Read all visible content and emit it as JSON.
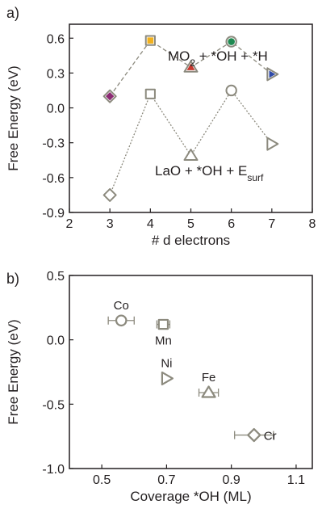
{
  "chart_data": [
    {
      "panel": "a)",
      "type": "scatter",
      "xlabel": "# d electrons",
      "ylabel": "Free Energy (eV)",
      "xlim": [
        2,
        8
      ],
      "ylim": [
        -0.9,
        0.72
      ],
      "x_ticks": [
        "2",
        "3",
        "4",
        "5",
        "6",
        "7",
        "8"
      ],
      "y_ticks": [
        "-0.9",
        "-0.6",
        "-0.3",
        "0.0",
        "0.3",
        "0.6"
      ],
      "series": [
        {
          "name": "MO2 + *OH + *H",
          "label_parts": [
            "MO",
            "2",
            " + *OH + *H"
          ],
          "line": "dashed",
          "points": [
            {
              "x": 3,
              "y": 0.1,
              "marker": "diamond",
              "fill": "#8b2a73"
            },
            {
              "x": 4,
              "y": 0.58,
              "marker": "square",
              "fill": "#f2b11e"
            },
            {
              "x": 5,
              "y": 0.35,
              "marker": "triangle-up",
              "fill": "#c8392f"
            },
            {
              "x": 6,
              "y": 0.57,
              "marker": "circle",
              "fill": "#1f8a52"
            },
            {
              "x": 7,
              "y": 0.29,
              "marker": "triangle-right",
              "fill": "#2f4aa8"
            }
          ]
        },
        {
          "name": "LaO + *OH + Esurf",
          "label_parts": [
            "LaO + *OH + E",
            "surf"
          ],
          "line": "dotted",
          "points": [
            {
              "x": 3,
              "y": -0.75,
              "marker": "diamond",
              "fill": "#ffffff"
            },
            {
              "x": 4,
              "y": 0.12,
              "marker": "square",
              "fill": "#ffffff"
            },
            {
              "x": 5,
              "y": -0.41,
              "marker": "triangle-up",
              "fill": "#ffffff"
            },
            {
              "x": 6,
              "y": 0.15,
              "marker": "circle",
              "fill": "#ffffff"
            },
            {
              "x": 7,
              "y": -0.31,
              "marker": "triangle-right",
              "fill": "#ffffff"
            }
          ]
        }
      ]
    },
    {
      "panel": "b)",
      "type": "scatter",
      "xlabel": "Coverage *OH (ML)",
      "ylabel": "Free Energy (eV)",
      "xlim": [
        0.4,
        1.15
      ],
      "ylim": [
        -1.0,
        0.5
      ],
      "x_ticks": [
        "0.5",
        "0.7",
        "0.9",
        "1.1"
      ],
      "y_ticks": [
        "-1.0",
        "-0.5",
        "0.0",
        "0.5"
      ],
      "points": [
        {
          "label": "Co",
          "x": 0.56,
          "y": 0.15,
          "xerr": 0.04,
          "marker": "circle",
          "label_color": "#1f7a4a",
          "label_pos": "above"
        },
        {
          "label": "Mn",
          "x": 0.69,
          "y": 0.12,
          "xerr": 0.02,
          "marker": "square",
          "label_color": "#e8a33a",
          "label_pos": "below"
        },
        {
          "label": "Ni",
          "x": 0.7,
          "y": -0.3,
          "xerr": 0.0,
          "marker": "triangle-right",
          "label_color": "#2a3f9a",
          "label_pos": "above"
        },
        {
          "label": "Fe",
          "x": 0.83,
          "y": -0.41,
          "xerr": 0.03,
          "marker": "triangle-up",
          "label_color": "#c0392b",
          "label_pos": "above"
        },
        {
          "label": "Cr",
          "x": 0.97,
          "y": -0.74,
          "xerr": 0.06,
          "marker": "diamond",
          "label_color": "#7b2468",
          "label_pos": "right"
        }
      ]
    }
  ],
  "colors": {
    "marker_edge": "#8c8a7e",
    "marker_fill_open": "#ffffff",
    "line": "#8c8a7e",
    "axis": "#231f20"
  }
}
